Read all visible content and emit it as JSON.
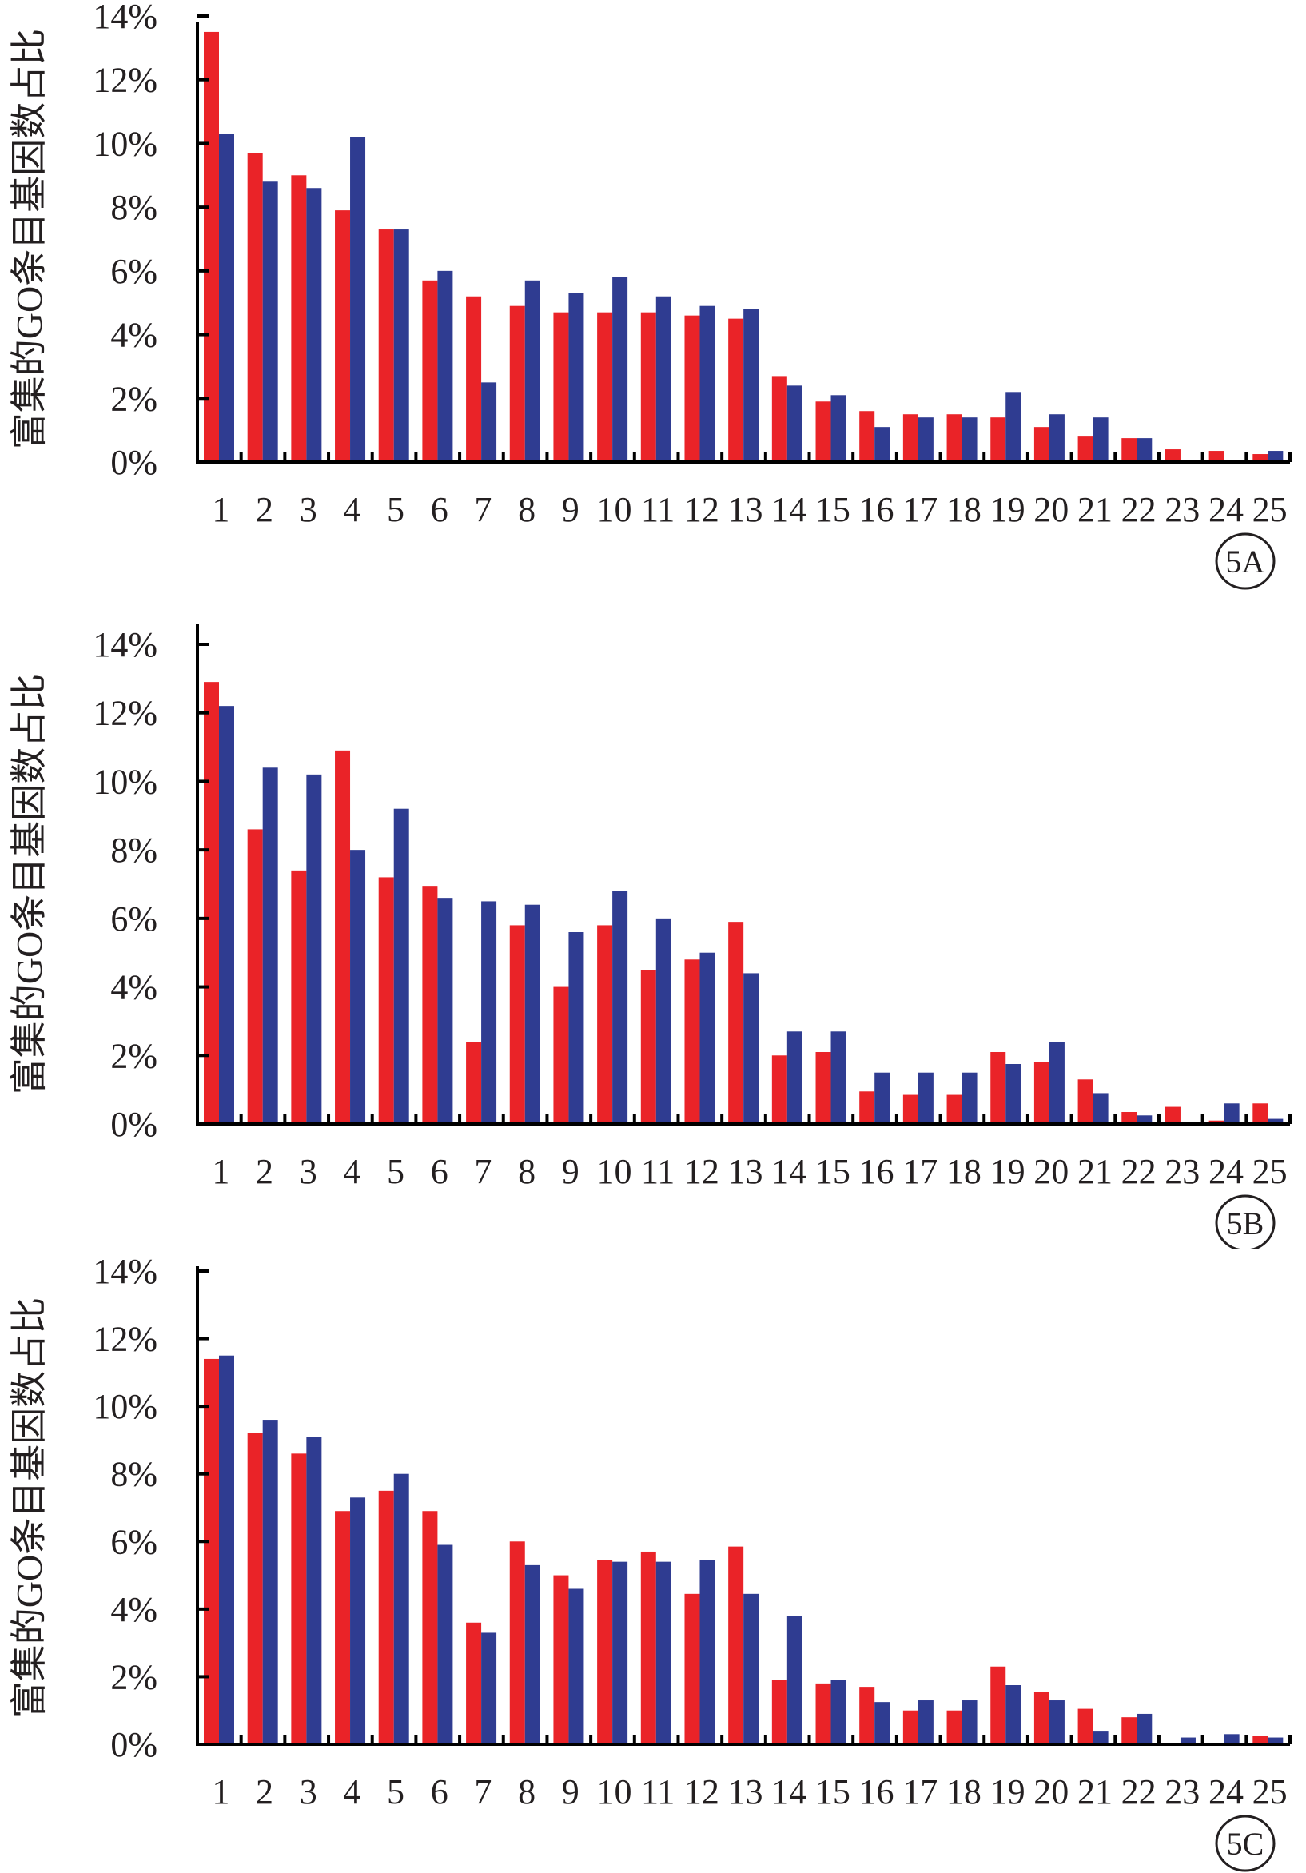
{
  "colors": {
    "series_a": "#ea2328",
    "series_b": "#2f3c91"
  },
  "chart_data": [
    {
      "type": "bar",
      "panel_label": "5A",
      "ylabel": "富集的GO条目基因数占比",
      "ylim": [
        0,
        14
      ],
      "y_ticks": [
        "0%",
        "2%",
        "4%",
        "6%",
        "8%",
        "10%",
        "12%",
        "14%"
      ],
      "categories": [
        "1",
        "2",
        "3",
        "4",
        "5",
        "6",
        "7",
        "8",
        "9",
        "10",
        "11",
        "12",
        "13",
        "14",
        "15",
        "16",
        "17",
        "18",
        "19",
        "20",
        "21",
        "22",
        "23",
        "24",
        "25"
      ],
      "series": [
        {
          "values": [
            13.5,
            9.7,
            9.0,
            7.9,
            7.3,
            5.7,
            5.2,
            4.9,
            4.7,
            4.7,
            4.7,
            4.6,
            4.5,
            2.7,
            1.9,
            1.6,
            1.5,
            1.5,
            1.4,
            1.1,
            0.8,
            0.75,
            0.4,
            0.35,
            0.25
          ]
        },
        {
          "values": [
            10.3,
            8.8,
            8.6,
            10.2,
            7.3,
            6.0,
            2.5,
            5.7,
            5.3,
            5.8,
            5.2,
            4.9,
            4.8,
            2.4,
            2.1,
            1.1,
            1.4,
            1.4,
            2.2,
            1.5,
            1.4,
            0.75,
            0.0,
            0.0,
            0.35
          ]
        }
      ]
    },
    {
      "type": "bar",
      "panel_label": "5B",
      "ylabel": "富集的GO条目基因数占比",
      "ylim": [
        0,
        14
      ],
      "y_ticks": [
        "0%",
        "2%",
        "4%",
        "6%",
        "8%",
        "10%",
        "12%",
        "14%"
      ],
      "categories": [
        "1",
        "2",
        "3",
        "4",
        "5",
        "6",
        "7",
        "8",
        "9",
        "10",
        "11",
        "12",
        "13",
        "14",
        "15",
        "16",
        "17",
        "18",
        "19",
        "20",
        "21",
        "22",
        "23",
        "24",
        "25"
      ],
      "series": [
        {
          "values": [
            12.9,
            8.6,
            7.4,
            10.9,
            7.2,
            6.95,
            2.4,
            5.8,
            4.0,
            5.8,
            4.5,
            4.8,
            5.9,
            2.0,
            2.1,
            0.95,
            0.85,
            0.85,
            2.1,
            1.8,
            1.3,
            0.35,
            0.5,
            0.1,
            0.6
          ]
        },
        {
          "values": [
            12.2,
            10.4,
            10.2,
            8.0,
            9.2,
            6.6,
            6.5,
            6.4,
            5.6,
            6.8,
            6.0,
            5.0,
            4.4,
            2.7,
            2.7,
            1.5,
            1.5,
            1.5,
            1.75,
            2.4,
            0.9,
            0.25,
            0.0,
            0.6,
            0.15
          ]
        }
      ]
    },
    {
      "type": "bar",
      "panel_label": "5C",
      "ylabel": "富集的GO条目基因数占比",
      "ylim": [
        0,
        14
      ],
      "y_ticks": [
        "0%",
        "2%",
        "4%",
        "6%",
        "8%",
        "10%",
        "12%",
        "14%"
      ],
      "categories": [
        "1",
        "2",
        "3",
        "4",
        "5",
        "6",
        "7",
        "8",
        "9",
        "10",
        "11",
        "12",
        "13",
        "14",
        "15",
        "16",
        "17",
        "18",
        "19",
        "20",
        "21",
        "22",
        "23",
        "24",
        "25"
      ],
      "series": [
        {
          "values": [
            11.4,
            9.2,
            8.6,
            6.9,
            7.5,
            6.9,
            3.6,
            6.0,
            5.0,
            5.45,
            5.7,
            4.45,
            5.85,
            1.9,
            1.8,
            1.7,
            1.0,
            1.0,
            2.3,
            1.55,
            1.05,
            0.8,
            0.0,
            0.0,
            0.25
          ]
        },
        {
          "values": [
            11.5,
            9.6,
            9.1,
            7.3,
            8.0,
            5.9,
            3.3,
            5.3,
            4.6,
            5.4,
            5.4,
            5.45,
            4.45,
            3.8,
            1.9,
            1.25,
            1.3,
            1.3,
            1.75,
            1.3,
            0.4,
            0.9,
            0.2,
            0.3,
            0.2
          ]
        }
      ]
    }
  ]
}
